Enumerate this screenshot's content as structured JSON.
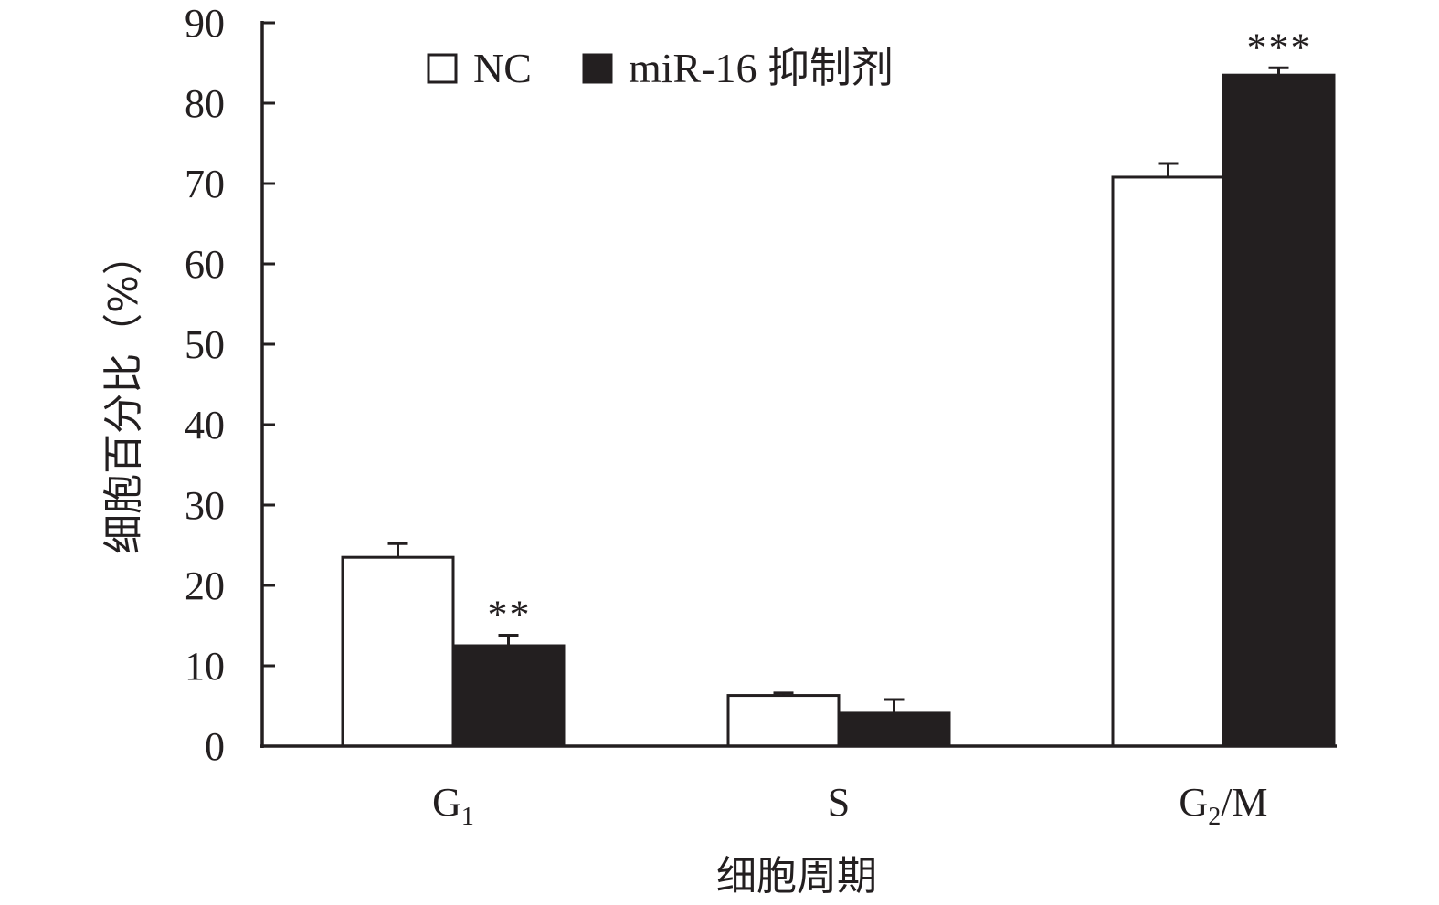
{
  "chart_data": {
    "type": "bar",
    "categories": [
      "G1",
      "S",
      "G2/M"
    ],
    "category_labels": [
      {
        "main": "G",
        "sub": "1",
        "suffix": ""
      },
      {
        "main": "S",
        "sub": "",
        "suffix": ""
      },
      {
        "main": "G",
        "sub": "2",
        "suffix": "/M"
      }
    ],
    "series": [
      {
        "name": "NC",
        "values": [
          23.5,
          6.3,
          70.8
        ],
        "errors": [
          1.7,
          0.3,
          1.7
        ],
        "color": "#ffffff",
        "significance": [
          "",
          "",
          ""
        ]
      },
      {
        "name": "miR-16 抑制剂",
        "values": [
          12.5,
          4.1,
          83.5
        ],
        "errors": [
          1.3,
          1.7,
          0.9
        ],
        "color": "#231f20",
        "significance": [
          "**",
          "",
          "***"
        ]
      }
    ],
    "xlabel": "细胞周期",
    "ylabel": "细胞百分比（%）",
    "ylim": [
      0,
      90
    ],
    "yticks": [
      0,
      10,
      20,
      30,
      40,
      50,
      60,
      70,
      80,
      90
    ],
    "legend_position": "top-left",
    "grid": false
  }
}
